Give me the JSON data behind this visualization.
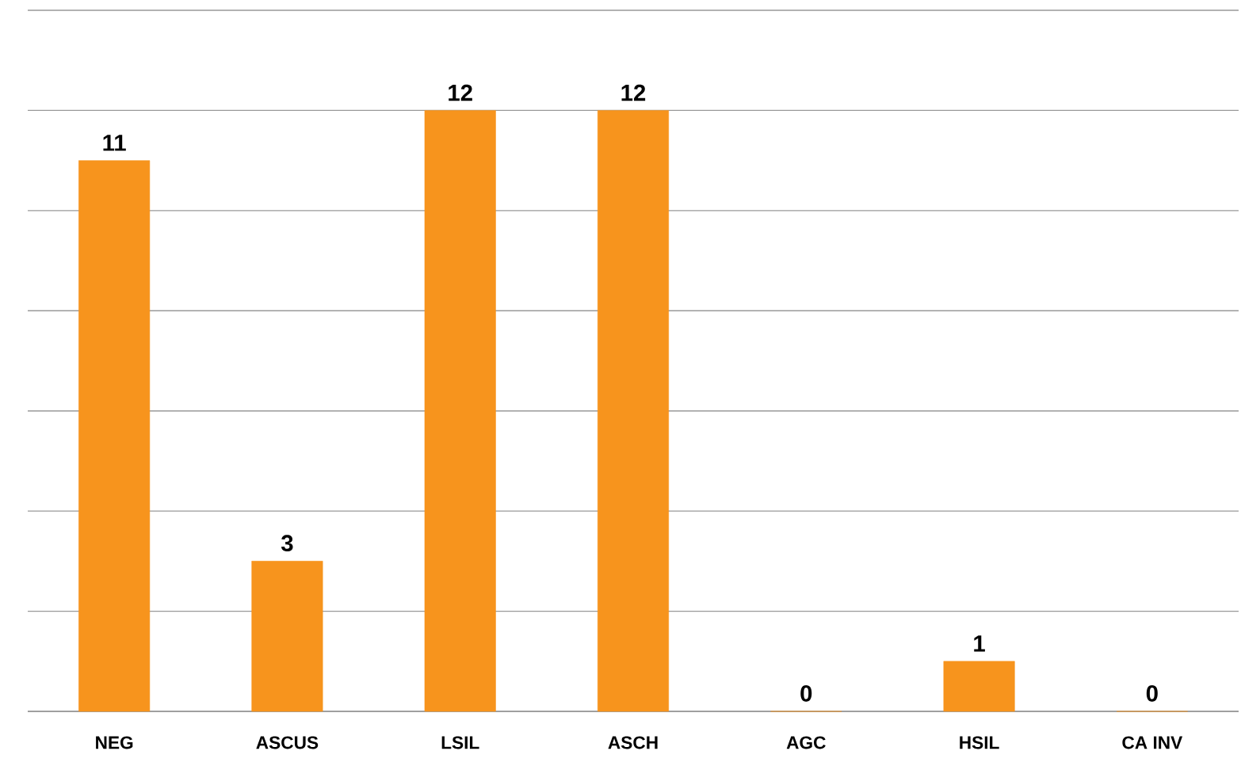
{
  "chart_data": {
    "type": "bar",
    "categories": [
      "NEG",
      "ASCUS",
      "LSIL",
      "ASCH",
      "AGC",
      "HSIL",
      "CA INV"
    ],
    "values": [
      11,
      3,
      12,
      12,
      0,
      1,
      0
    ],
    "color": "#f7941d",
    "data_labels": true,
    "ylim": [
      0,
      14
    ],
    "yticks": [
      {
        "value": 0,
        "label": null
      },
      {
        "value": 2,
        "label": null
      },
      {
        "value": 4,
        "label": null
      },
      {
        "value": 6,
        "label": null
      },
      {
        "value": 8,
        "label": null
      },
      {
        "value": 10,
        "label": null
      },
      {
        "value": 12,
        "label": null
      },
      {
        "value": 14,
        "label": null
      }
    ],
    "grid": "y",
    "tick_labels": "x"
  }
}
